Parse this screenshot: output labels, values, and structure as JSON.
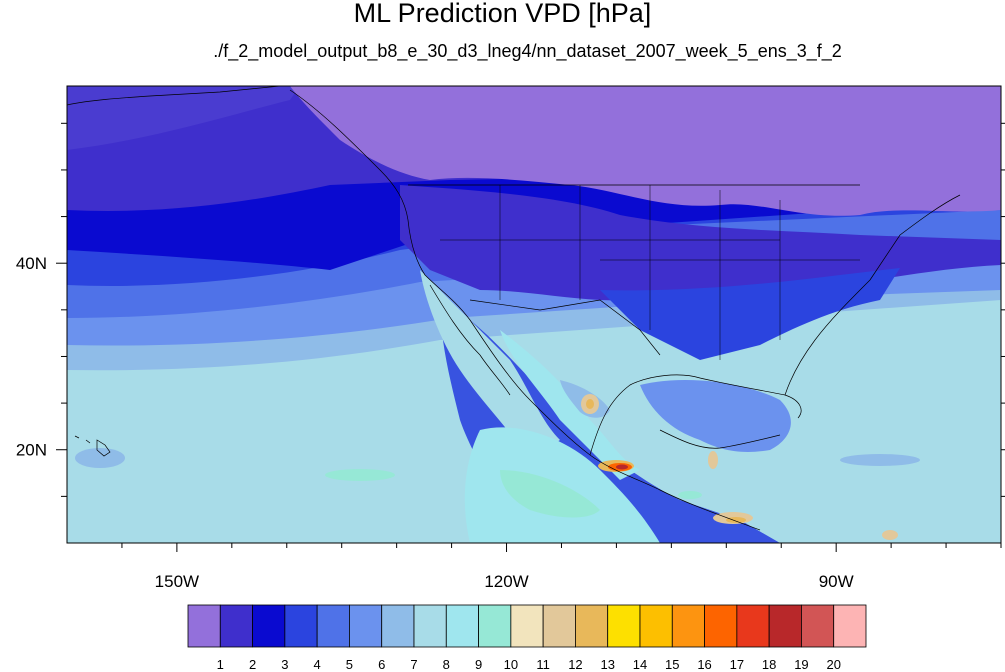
{
  "title": "ML Prediction VPD [hPa]",
  "subtitle": "./f_2_model_output_b8_e_30_d3_lneg4/nn_dataset_2007_week_5_ens_3_f_2",
  "map": {
    "projection": "cylindrical-equidistant",
    "lon_range": [
      -160,
      -75
    ],
    "lat_range": [
      10,
      59
    ]
  },
  "x_ticks": [
    {
      "lon": -150,
      "label": "150W"
    },
    {
      "lon": -120,
      "label": "120W"
    },
    {
      "lon": -90,
      "label": "90W"
    }
  ],
  "y_ticks": [
    {
      "lat": 40,
      "label": "40N"
    },
    {
      "lat": 20,
      "label": "20N"
    }
  ],
  "colorbar": {
    "labels": [
      "1",
      "2",
      "3",
      "4",
      "5",
      "6",
      "7",
      "8",
      "9",
      "10",
      "11",
      "12",
      "13",
      "14",
      "15",
      "16",
      "17",
      "18",
      "19",
      "20"
    ],
    "colors": [
      "#9370db",
      "#3f2fcc",
      "#0a0ad0",
      "#2b44df",
      "#4f72e8",
      "#6b92ee",
      "#8fbce8",
      "#a8dce8",
      "#9fe6ee",
      "#96e8d6",
      "#f2e4bd",
      "#e2c89a",
      "#e8b85a",
      "#fde000",
      "#fdbf00",
      "#fd9410",
      "#fd6400",
      "#e8381c",
      "#b8282a",
      "#d25555",
      "#fdb4b4"
    ]
  }
}
